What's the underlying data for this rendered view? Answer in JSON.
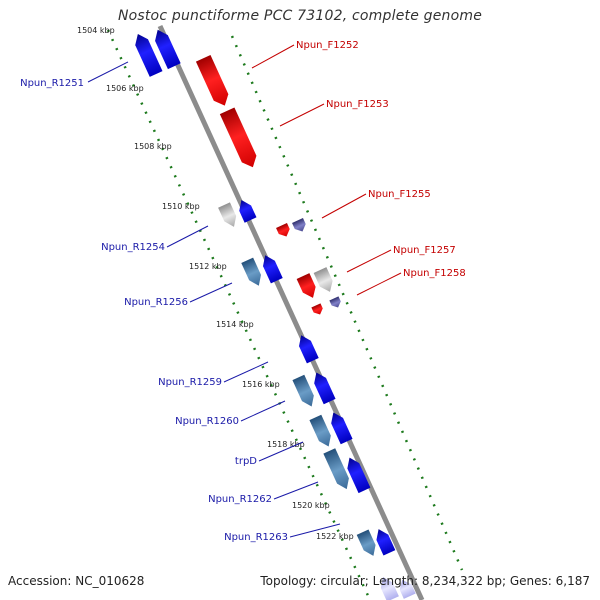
{
  "title": "Nostoc punctiforme PCC 73102, complete genome",
  "footer": {
    "accession": "Accession: NC_010628",
    "summary": "Topology: circular; Length: 8,234,322 bp; Genes: 6,187"
  },
  "colors": {
    "backbone": "#8c8c8c",
    "reverse_label": "#1a1aa8",
    "forward_label": "#c40000",
    "guide_dots": "#1d7a1d"
  },
  "scale_labels": [
    "1504 kbp",
    "1506 kbp",
    "1508 kbp",
    "1510 kbp",
    "1512 kbp",
    "1514 kbp",
    "1516 kbp",
    "1518 kbp",
    "1520 kbp",
    "1522 kbp"
  ],
  "reverse_labels": [
    "Npun_R1251",
    "Npun_R1254",
    "Npun_R1256",
    "Npun_R1259",
    "Npun_R1260",
    "trpD",
    "Npun_R1262",
    "Npun_R1263"
  ],
  "forward_labels": [
    "Npun_F1252",
    "Npun_F1253",
    "Npun_F1255",
    "Npun_F1257",
    "Npun_F1258"
  ]
}
